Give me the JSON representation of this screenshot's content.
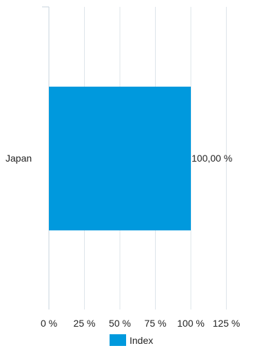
{
  "chart_data": {
    "type": "bar",
    "orientation": "horizontal",
    "categories": [
      "Japan"
    ],
    "series": [
      {
        "name": "Index",
        "values": [
          100
        ],
        "color": "#0099dd",
        "data_labels": [
          "100,00 %"
        ]
      }
    ],
    "x_ticks": [
      "0 %",
      "25 %",
      "50 %",
      "75 %",
      "100 %",
      "125 %"
    ],
    "xlim": [
      0,
      125
    ],
    "grid": true,
    "legend_position": "bottom"
  }
}
